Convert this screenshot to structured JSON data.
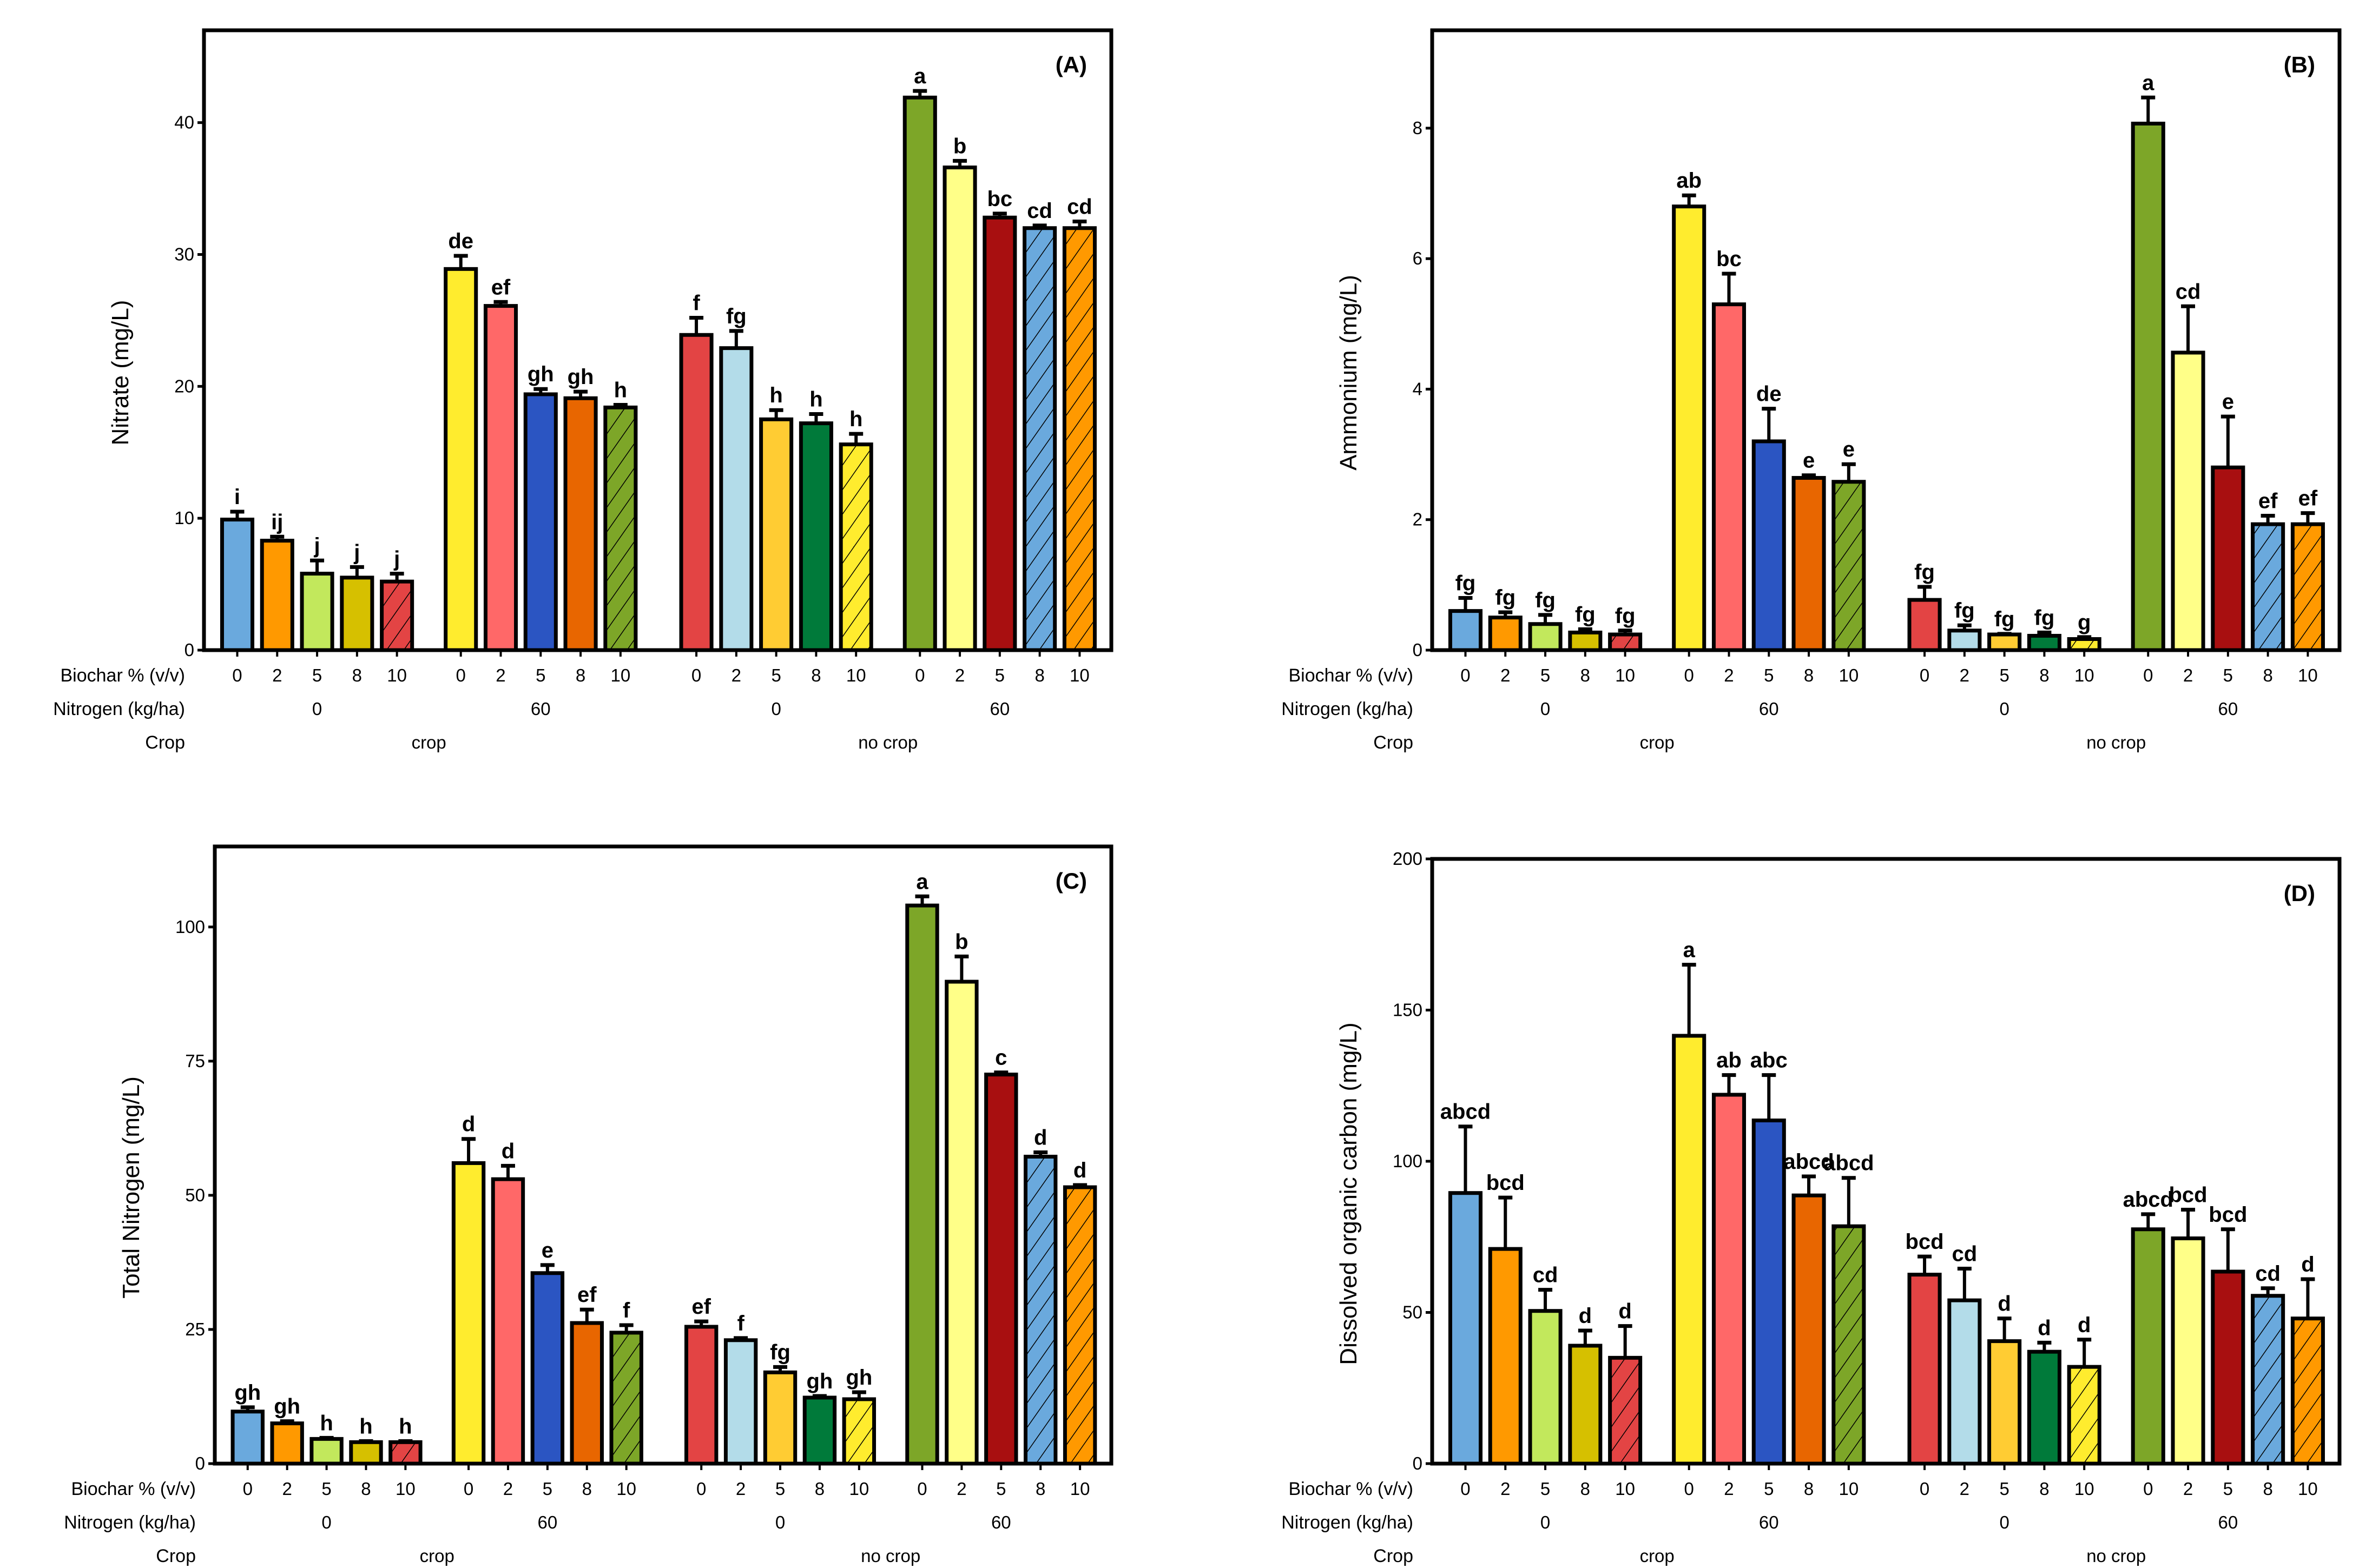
{
  "bar_style": {
    "colors": [
      "#6aa9dd",
      "#ff9900",
      "#c2e85c",
      "#d6c000",
      "#e34444",
      "#ffec2e",
      "#ff6868",
      "#2b55c2",
      "#e86600",
      "#7da628",
      "#e34444",
      "#b3dce9",
      "#ffcc33",
      "#007a3a",
      "#ffec2e",
      "#7da628",
      "#ffff88",
      "#a80f10",
      "#6aa9dd",
      "#ff9900"
    ],
    "hatched": [
      false,
      false,
      false,
      false,
      true,
      false,
      false,
      false,
      false,
      true,
      false,
      false,
      false,
      false,
      true,
      false,
      false,
      false,
      true,
      true
    ]
  },
  "row_labels": {
    "biochar": "Biochar % (v/v)",
    "nitrogen": "Nitrogen (kg/ha)",
    "crop": "Crop"
  },
  "chart_data": [
    {
      "type": "bar",
      "panel": "(A)",
      "ylabel": "Nitrate (mg/L)",
      "ylim": [
        0,
        47
      ],
      "yticks": [
        "0",
        "10",
        "20",
        "30",
        "40"
      ],
      "categories": [
        "0",
        "2",
        "5",
        "8",
        "10",
        "0",
        "2",
        "5",
        "8",
        "10",
        "0",
        "2",
        "5",
        "8",
        "10",
        "0",
        "2",
        "5",
        "8",
        "10"
      ],
      "nitrogen_groups": [
        "0",
        "60",
        "0",
        "60"
      ],
      "crop_groups": [
        "crop",
        "no crop"
      ],
      "values": [
        9.9,
        8.3,
        5.8,
        5.5,
        5.2,
        28.9,
        26.1,
        19.4,
        19.1,
        18.4,
        23.9,
        22.9,
        17.5,
        17.2,
        15.6,
        41.9,
        36.6,
        32.8,
        32.0,
        32.0
      ],
      "error_upper": [
        10.5,
        8.6,
        6.8,
        6.3,
        5.8,
        29.9,
        26.4,
        19.8,
        19.6,
        18.6,
        25.2,
        24.2,
        18.2,
        17.9,
        16.4,
        42.4,
        37.1,
        33.1,
        32.2,
        32.5
      ],
      "letters": [
        "i",
        "ij",
        "j",
        "j",
        "j",
        "de",
        "ef",
        "gh",
        "gh",
        "h",
        "f",
        "fg",
        "h",
        "h",
        "h",
        "a",
        "b",
        "bc",
        "cd",
        "cd"
      ]
    },
    {
      "type": "bar",
      "panel": "(B)",
      "ylabel": "Ammonium (mg/L)",
      "ylim": [
        0,
        9.5
      ],
      "yticks": [
        "0",
        "2",
        "4",
        "6",
        "8"
      ],
      "categories": [
        "0",
        "2",
        "5",
        "8",
        "10",
        "0",
        "2",
        "5",
        "8",
        "10",
        "0",
        "2",
        "5",
        "8",
        "10",
        "0",
        "2",
        "5",
        "8",
        "10"
      ],
      "nitrogen_groups": [
        "0",
        "60",
        "0",
        "60"
      ],
      "crop_groups": [
        "crop",
        "no crop"
      ],
      "values": [
        0.6,
        0.5,
        0.4,
        0.27,
        0.24,
        6.8,
        5.3,
        3.2,
        2.64,
        2.58,
        0.77,
        0.3,
        0.24,
        0.22,
        0.17,
        8.07,
        4.56,
        2.8,
        1.93,
        1.93
      ],
      "error_upper": [
        0.8,
        0.58,
        0.54,
        0.32,
        0.3,
        6.97,
        5.77,
        3.7,
        2.68,
        2.85,
        0.97,
        0.38,
        0.25,
        0.27,
        0.2,
        8.47,
        5.27,
        3.58,
        2.06,
        2.1
      ],
      "letters": [
        "fg",
        "fg",
        "fg",
        "fg",
        "fg",
        "ab",
        "bc",
        "de",
        "e",
        "e",
        "fg",
        "fg",
        "fg",
        "fg",
        "g",
        "a",
        "cd",
        "e",
        "ef",
        "ef"
      ]
    },
    {
      "type": "bar",
      "panel": "(C)",
      "ylabel": "Total Nitrogen (mg/L)",
      "ylim": [
        0,
        115
      ],
      "yticks": [
        "0",
        "25",
        "50",
        "75",
        "100"
      ],
      "categories": [
        "0",
        "2",
        "5",
        "8",
        "10",
        "0",
        "2",
        "5",
        "8",
        "10",
        "0",
        "2",
        "5",
        "8",
        "10",
        "0",
        "2",
        "5",
        "8",
        "10"
      ],
      "nitrogen_groups": [
        "0",
        "60",
        "0",
        "60"
      ],
      "crop_groups": [
        "crop",
        "no crop"
      ],
      "values": [
        9.7,
        7.5,
        4.6,
        4.0,
        4.0,
        56.0,
        53.0,
        35.5,
        26.2,
        24.4,
        25.5,
        23.0,
        17.0,
        12.3,
        12.0,
        104.0,
        89.8,
        72.5,
        57.2,
        51.5
      ],
      "error_upper": [
        10.5,
        7.9,
        4.8,
        4.2,
        4.2,
        60.5,
        55.5,
        37.0,
        28.7,
        25.8,
        26.5,
        23.4,
        18.0,
        12.6,
        13.3,
        105.7,
        94.5,
        72.9,
        58.0,
        51.9
      ],
      "letters": [
        "gh",
        "gh",
        "h",
        "h",
        "h",
        "d",
        "d",
        "e",
        "ef",
        "f",
        "ef",
        "f",
        "fg",
        "gh",
        "gh",
        "a",
        "b",
        "c",
        "d",
        "d"
      ]
    },
    {
      "type": "bar",
      "panel": "(D)",
      "ylabel": "Dissolved organic carbon (mg/L)",
      "ylim": [
        0,
        200
      ],
      "yticks": [
        "0",
        "50",
        "100",
        "150",
        "200"
      ],
      "categories": [
        "0",
        "2",
        "5",
        "8",
        "10",
        "0",
        "2",
        "5",
        "8",
        "10",
        "0",
        "2",
        "5",
        "8",
        "10",
        "0",
        "2",
        "5",
        "8",
        "10"
      ],
      "nitrogen_groups": [
        "0",
        "60",
        "0",
        "60"
      ],
      "crop_groups": [
        "crop",
        "no crop"
      ],
      "values": [
        89.5,
        71.0,
        50.5,
        39.0,
        35.0,
        141.5,
        122.0,
        113.5,
        88.7,
        78.5,
        62.5,
        54.0,
        40.5,
        37.0,
        32.0,
        77.5,
        74.5,
        63.5,
        55.5,
        48.0
      ],
      "error_upper": [
        111.5,
        88.0,
        57.5,
        44.0,
        45.5,
        165.0,
        128.5,
        128.5,
        95.0,
        94.5,
        68.5,
        64.5,
        48.0,
        40.0,
        41.0,
        82.5,
        84.0,
        77.5,
        58.0,
        61.0
      ],
      "letters": [
        "abcd",
        "bcd",
        "cd",
        "d",
        "d",
        "a",
        "ab",
        "abc",
        "abcd",
        "abcd",
        "bcd",
        "cd",
        "d",
        "d",
        "d",
        "abcd",
        "bcd",
        "bcd",
        "cd",
        "d"
      ]
    }
  ]
}
